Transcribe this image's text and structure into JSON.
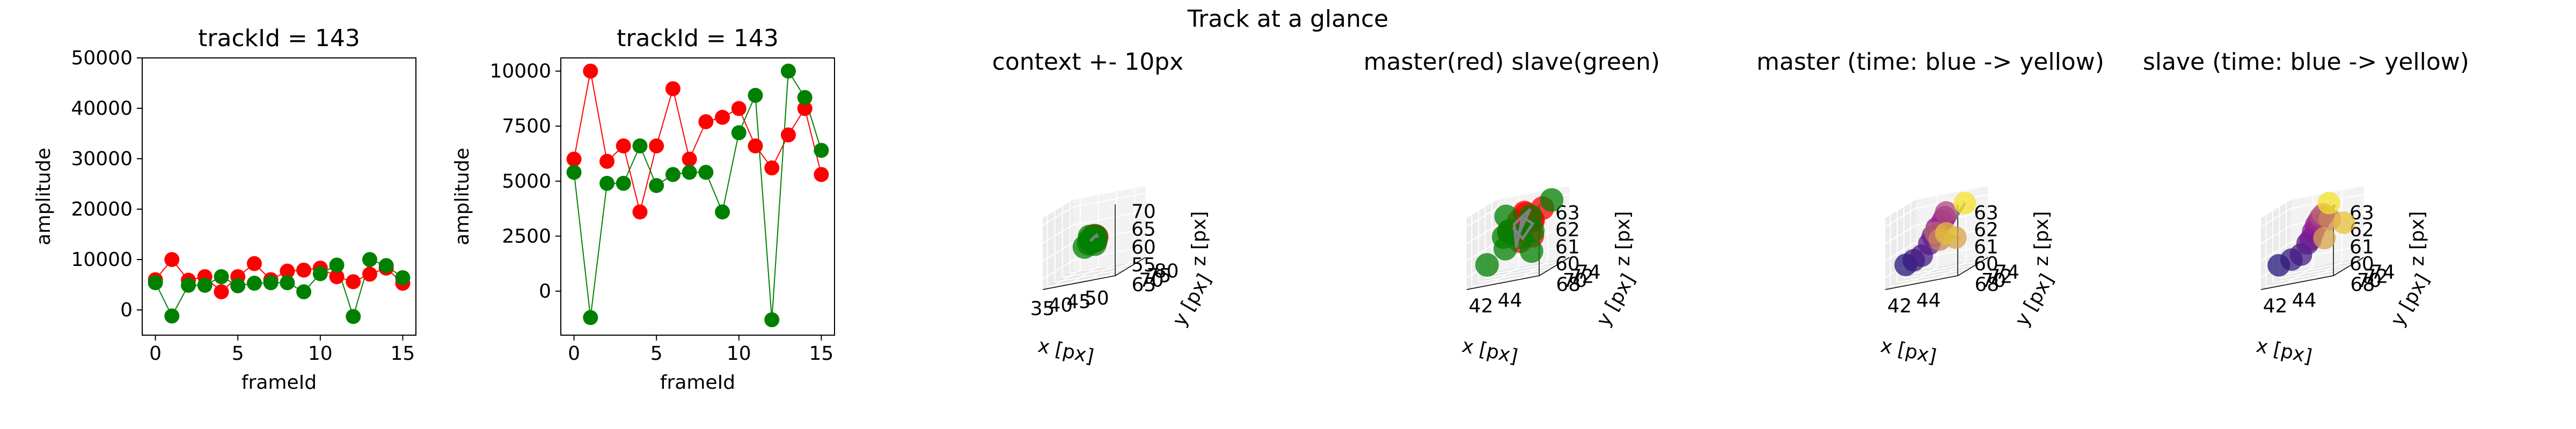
{
  "figure": {
    "suptitle": "Track at a glance"
  },
  "colors": {
    "red": "#ff0000",
    "green": "#008000",
    "grey": "#808080",
    "pane_back": "#f2f2f2",
    "pane_side": "#ebebeb",
    "pane_floor": "#e6e6e6"
  },
  "chart_data": [
    {
      "type": "line",
      "title": "trackId = 143",
      "xlabel": "frameId",
      "ylabel": "amplitude",
      "xlim": [
        -0.8,
        15.8
      ],
      "ylim": [
        -5000,
        50000
      ],
      "xticks": [
        0,
        5,
        10,
        15
      ],
      "yticks": [
        0,
        10000,
        20000,
        30000,
        40000,
        50000
      ],
      "x": [
        0,
        1,
        2,
        3,
        4,
        5,
        6,
        7,
        8,
        9,
        10,
        11,
        12,
        13,
        14,
        15
      ],
      "series": [
        {
          "name": "master",
          "color": "#ff0000",
          "values": [
            6000,
            10000,
            5900,
            6600,
            3600,
            6600,
            9200,
            6000,
            7700,
            7900,
            8300,
            6600,
            5600,
            7100,
            8300,
            5300
          ]
        },
        {
          "name": "slave",
          "color": "#008000",
          "values": [
            5400,
            -1200,
            4900,
            4900,
            6600,
            4800,
            5300,
            5400,
            5400,
            3600,
            7200,
            8900,
            -1300,
            10000,
            8800,
            6400
          ]
        }
      ]
    },
    {
      "type": "line",
      "title": "trackId = 143",
      "xlabel": "frameId",
      "ylabel": "amplitude",
      "xlim": [
        -0.8,
        15.8
      ],
      "ylim": [
        -2000,
        10600
      ],
      "xticks": [
        0,
        5,
        10,
        15
      ],
      "yticks": [
        0,
        2500,
        5000,
        7500,
        10000
      ],
      "x": [
        0,
        1,
        2,
        3,
        4,
        5,
        6,
        7,
        8,
        9,
        10,
        11,
        12,
        13,
        14,
        15
      ],
      "series": [
        {
          "name": "master",
          "color": "#ff0000",
          "values": [
            6000,
            10000,
            5900,
            6600,
            3600,
            6600,
            9200,
            6000,
            7700,
            7900,
            8300,
            6600,
            5600,
            7100,
            8300,
            5300
          ]
        },
        {
          "name": "slave",
          "color": "#008000",
          "values": [
            5400,
            -1200,
            4900,
            4900,
            6600,
            4800,
            5300,
            5400,
            5400,
            3600,
            7200,
            8900,
            -1300,
            10000,
            8800,
            6400
          ]
        }
      ]
    },
    {
      "type": "scatter",
      "title": "context +- 10px",
      "xlabel": "x [px]",
      "ylabel": "y [px]",
      "zlabel": "z [px]",
      "xlim": [
        33,
        53
      ],
      "ylim": [
        62,
        82
      ],
      "zlim": [
        52,
        72
      ],
      "xticks": [
        35,
        40,
        45,
        50
      ],
      "yticks": [
        65,
        70,
        75,
        80
      ],
      "zticks": [
        55,
        60,
        65,
        70
      ],
      "track_x": [
        42.8,
        43.0,
        43.3,
        43.6,
        43.9,
        44.1,
        44.3
      ],
      "track_y": [
        70.0,
        70.2,
        70.4,
        70.6,
        70.8,
        71.0,
        71.3
      ],
      "track_z": [
        61.6,
        61.9,
        62.1,
        62.4,
        62.6,
        62.8,
        62.0
      ],
      "master_x": [
        43.5,
        44.1,
        43.9,
        42.9,
        43.7,
        44.0,
        43.2
      ],
      "master_y": [
        71.2,
        70.5,
        71.6,
        70.3,
        69.9,
        71.0,
        70.7
      ],
      "master_z": [
        62.7,
        61.4,
        62.2,
        61.8,
        62.9,
        62.3,
        61.2
      ],
      "slave_x": [
        41.0,
        42.4,
        43.8,
        44.2,
        42.2,
        43.0,
        44.3,
        42.6
      ],
      "slave_y": [
        70.4,
        69.8,
        71.3,
        70.2,
        70.9,
        72.0,
        69.4,
        70.0
      ],
      "slave_z": [
        60.2,
        61.0,
        62.5,
        61.7,
        62.8,
        61.3,
        60.6,
        62.0
      ]
    },
    {
      "type": "scatter",
      "title": "master(red) slave(green)",
      "xlabel": "x [px]",
      "ylabel": "y [px]",
      "zlabel": "z [px]",
      "xlim": [
        40.5,
        45.5
      ],
      "ylim": [
        66.5,
        75.5
      ],
      "zlim": [
        59.3,
        63.5
      ],
      "xticks": [
        42,
        44
      ],
      "yticks": [
        68,
        70,
        72,
        74
      ],
      "zticks": [
        60,
        61,
        62,
        63
      ],
      "track_x": [
        43.1,
        43.7,
        42.9,
        43.3,
        43.4,
        43.8,
        43.6,
        42.8,
        43.0
      ],
      "track_y": [
        71.0,
        71.6,
        70.3,
        69.2,
        70.6,
        71.9,
        69.8,
        70.4,
        71.3
      ],
      "track_z": [
        61.7,
        62.9,
        62.3,
        61.0,
        62.6,
        62.0,
        61.4,
        62.1,
        61.5
      ],
      "master_x": [
        43.5,
        44.1,
        43.9,
        42.9,
        43.7,
        44.0,
        43.2,
        42.6,
        43.4,
        44.5
      ],
      "master_y": [
        71.2,
        70.5,
        71.6,
        70.3,
        69.9,
        71.0,
        70.7,
        70.0,
        69.5,
        71.8
      ],
      "master_z": [
        62.7,
        61.4,
        62.2,
        61.8,
        62.9,
        62.3,
        61.2,
        61.9,
        62.5,
        62.8
      ],
      "slave_x": [
        41.0,
        42.4,
        43.8,
        44.2,
        42.2,
        43.0,
        44.3,
        42.6,
        44.9,
        42.0
      ],
      "slave_y": [
        70.4,
        69.8,
        71.3,
        70.2,
        70.9,
        72.0,
        69.4,
        70.0,
        72.8,
        71.0
      ],
      "slave_z": [
        60.2,
        61.0,
        62.5,
        61.7,
        62.8,
        61.3,
        60.6,
        62.0,
        63.1,
        61.6
      ]
    },
    {
      "type": "scatter",
      "title": "master (time: blue -> yellow)",
      "xlabel": "x [px]",
      "ylabel": "y [px]",
      "zlabel": "z [px]",
      "xlim": [
        40.5,
        45.5
      ],
      "ylim": [
        66.5,
        75.5
      ],
      "zlim": [
        59.3,
        63.5
      ],
      "xticks": [
        42,
        44
      ],
      "yticks": [
        68,
        70,
        72,
        74
      ],
      "zticks": [
        60,
        61,
        62,
        63
      ],
      "track_x": [
        42.9,
        43.1,
        43.3,
        43.5,
        43.2,
        43.6,
        44.3,
        43.8,
        44.6
      ],
      "track_y": [
        70.3,
        70.6,
        71.0,
        71.2,
        69.8,
        69.3,
        71.0,
        70.4,
        72.5
      ],
      "track_z": [
        61.6,
        62.0,
        62.3,
        62.5,
        61.8,
        61.4,
        61.2,
        61.6,
        63.0
      ],
      "points_x": [
        41.0,
        41.6,
        42.2,
        42.7,
        42.9,
        43.1,
        43.4,
        43.5,
        43.7,
        43.2,
        43.6,
        44.3,
        43.8,
        44.6
      ],
      "points_y": [
        70.4,
        70.2,
        70.0,
        70.1,
        70.3,
        70.6,
        71.0,
        71.2,
        70.8,
        69.8,
        69.3,
        71.0,
        70.4,
        72.5
      ],
      "points_z": [
        60.2,
        60.4,
        60.6,
        61.2,
        61.6,
        62.0,
        62.3,
        62.5,
        62.8,
        61.8,
        61.4,
        61.2,
        61.6,
        63.0
      ]
    },
    {
      "type": "scatter",
      "title": "slave (time: blue -> yellow)",
      "xlabel": "x [px]",
      "ylabel": "y [px]",
      "zlabel": "z [px]",
      "xlim": [
        40.5,
        45.5
      ],
      "ylim": [
        66.5,
        75.5
      ],
      "zlim": [
        59.3,
        63.5
      ],
      "xticks": [
        42,
        44
      ],
      "yticks": [
        68,
        70,
        72,
        74
      ],
      "zticks": [
        60,
        61,
        62,
        63
      ],
      "track_x": [
        43.0,
        43.2,
        43.3,
        43.4,
        43.5,
        43.6,
        44.2
      ],
      "track_y": [
        70.1,
        70.4,
        70.8,
        71.1,
        71.4,
        71.7,
        72.7
      ],
      "track_z": [
        61.4,
        61.8,
        62.1,
        62.3,
        62.5,
        62.6,
        62.9
      ],
      "points_x": [
        40.8,
        41.7,
        42.4,
        42.9,
        43.1,
        43.2,
        43.3,
        43.4,
        43.5,
        43.6,
        43.9,
        44.0,
        44.8,
        43.7
      ],
      "points_y": [
        70.5,
        70.4,
        70.2,
        70.0,
        70.1,
        70.4,
        70.8,
        71.1,
        71.4,
        71.7,
        72.3,
        70.3,
        72.6,
        72.9
      ],
      "points_z": [
        60.2,
        60.4,
        60.6,
        61.2,
        61.4,
        61.8,
        62.1,
        62.3,
        62.5,
        62.6,
        62.2,
        61.3,
        61.8,
        63.1
      ]
    }
  ]
}
